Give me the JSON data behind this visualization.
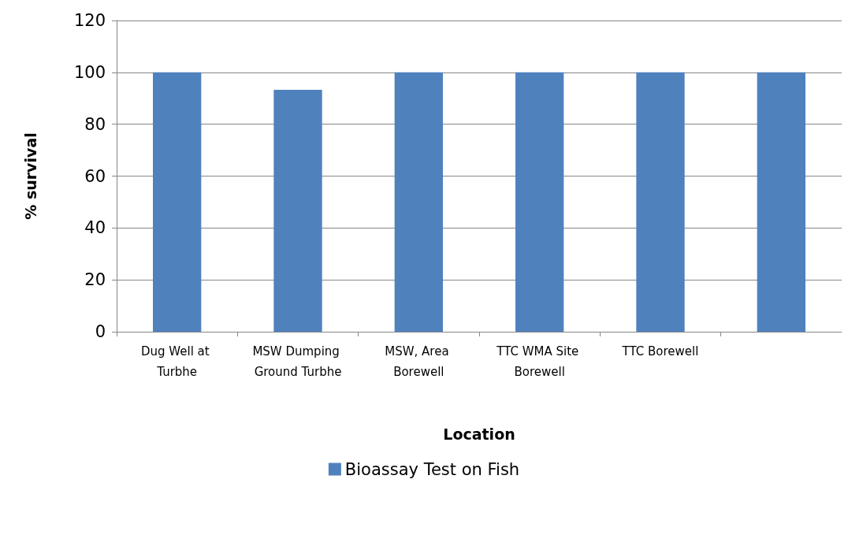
{
  "chart_data": {
    "type": "bar",
    "xlabel": "Location",
    "ylabel": "% survival",
    "categories": [
      "Dug Well at Turbhe",
      "MSW Dumping Ground Turbhe",
      "MSW, Area Borewell",
      "TTC WMA Site Borewell",
      "TTC Borewell",
      null
    ],
    "series": [
      {
        "name": "Bioassay Test on Fish",
        "color": "#4f81bd",
        "values": [
          100,
          93.3,
          100,
          100,
          100,
          100
        ]
      }
    ],
    "ylim": [
      0,
      120
    ],
    "yticks": [
      0,
      20,
      40,
      60,
      80,
      100,
      120
    ],
    "grid": "y",
    "legend": "bottom"
  }
}
